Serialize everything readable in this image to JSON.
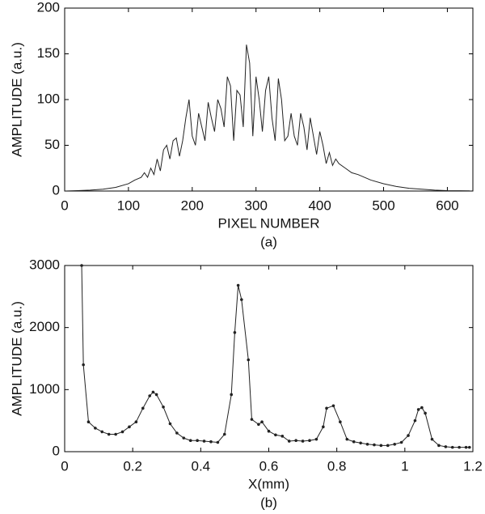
{
  "chart_data": [
    {
      "type": "line",
      "xlabel": "PIXEL NUMBER",
      "ylabel": "AMPLITUDE (a.u.)",
      "caption": "(a)",
      "color": "#222",
      "markers": false,
      "xlim": [
        0,
        640
      ],
      "xticks": [
        0,
        100,
        200,
        300,
        400,
        500,
        600
      ],
      "ylim": [
        0,
        200
      ],
      "yticks": [
        0,
        50,
        100,
        150,
        200
      ],
      "x": [
        0,
        20,
        40,
        60,
        80,
        100,
        110,
        120,
        125,
        130,
        135,
        140,
        145,
        150,
        155,
        160,
        165,
        170,
        175,
        180,
        185,
        190,
        195,
        200,
        205,
        210,
        215,
        220,
        225,
        230,
        235,
        240,
        245,
        250,
        255,
        260,
        265,
        270,
        275,
        280,
        285,
        290,
        295,
        300,
        305,
        310,
        315,
        320,
        325,
        330,
        335,
        340,
        345,
        350,
        355,
        360,
        365,
        370,
        375,
        380,
        385,
        390,
        395,
        400,
        405,
        410,
        415,
        420,
        425,
        430,
        440,
        450,
        460,
        470,
        480,
        500,
        520,
        540,
        560,
        580,
        600,
        620,
        635
      ],
      "values": [
        0,
        0.5,
        1,
        2,
        4,
        8,
        12,
        15,
        20,
        15,
        25,
        18,
        35,
        22,
        45,
        50,
        35,
        55,
        58,
        38,
        55,
        80,
        100,
        60,
        50,
        85,
        70,
        55,
        97,
        80,
        65,
        100,
        90,
        70,
        125,
        115,
        55,
        110,
        105,
        70,
        160,
        140,
        60,
        125,
        100,
        65,
        110,
        125,
        80,
        55,
        123,
        100,
        55,
        60,
        85,
        60,
        50,
        85,
        70,
        45,
        80,
        60,
        40,
        65,
        50,
        30,
        42,
        28,
        35,
        30,
        25,
        20,
        18,
        15,
        12,
        8,
        5,
        3,
        2,
        1,
        0.5,
        0.3,
        0.2
      ]
    },
    {
      "type": "line",
      "xlabel": "X(mm)",
      "ylabel": "AMPLITUDE (a.u.)",
      "caption": "(b)",
      "color": "#222",
      "markers": true,
      "xlim": [
        0,
        1.2
      ],
      "xticks": [
        0,
        0.2,
        0.4,
        0.6,
        0.8,
        1,
        1.2
      ],
      "ylim": [
        0,
        3000
      ],
      "yticks": [
        0,
        1000,
        2000,
        3000
      ],
      "x": [
        0.05,
        0.055,
        0.07,
        0.09,
        0.11,
        0.13,
        0.15,
        0.17,
        0.19,
        0.21,
        0.23,
        0.25,
        0.26,
        0.27,
        0.29,
        0.31,
        0.33,
        0.35,
        0.37,
        0.39,
        0.41,
        0.43,
        0.45,
        0.47,
        0.49,
        0.5,
        0.51,
        0.52,
        0.54,
        0.55,
        0.57,
        0.58,
        0.6,
        0.62,
        0.64,
        0.66,
        0.68,
        0.7,
        0.72,
        0.74,
        0.76,
        0.77,
        0.79,
        0.81,
        0.83,
        0.85,
        0.87,
        0.89,
        0.91,
        0.93,
        0.95,
        0.97,
        0.99,
        1.01,
        1.03,
        1.04,
        1.05,
        1.06,
        1.08,
        1.1,
        1.12,
        1.14,
        1.16,
        1.18,
        1.19
      ],
      "values": [
        3000,
        1400,
        480,
        380,
        320,
        280,
        280,
        320,
        400,
        480,
        700,
        900,
        960,
        920,
        720,
        450,
        300,
        220,
        180,
        180,
        170,
        160,
        150,
        280,
        920,
        1920,
        2680,
        2450,
        1480,
        520,
        440,
        480,
        330,
        270,
        250,
        170,
        180,
        170,
        180,
        200,
        400,
        700,
        740,
        480,
        200,
        160,
        140,
        120,
        110,
        100,
        100,
        120,
        150,
        260,
        500,
        680,
        710,
        620,
        200,
        100,
        80,
        70,
        70,
        70,
        70
      ]
    }
  ]
}
